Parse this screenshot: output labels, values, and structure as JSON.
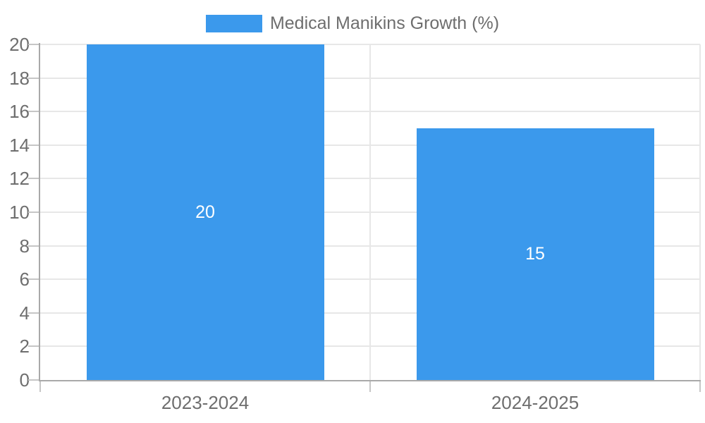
{
  "chart_data": {
    "type": "bar",
    "title": "Medical Manikins Growth (%)",
    "categories": [
      "2023-2024",
      "2024-2025"
    ],
    "values": [
      20,
      15
    ],
    "value_labels": [
      "20",
      "15"
    ],
    "xlabel": "",
    "ylabel": "",
    "ylim": [
      0,
      20
    ],
    "yticks": [
      0,
      2,
      4,
      6,
      8,
      10,
      12,
      14,
      16,
      18,
      20
    ],
    "grid": true,
    "legend_position": "top",
    "bar_width_fraction": 0.72,
    "value_labels_inside_bars": true
  },
  "legend": {
    "label": "Medical Manikins Growth (%)"
  },
  "colors": {
    "bar": "#3b99ec",
    "grid": "#e7e7e7",
    "axis": "#a9a9a9",
    "tick": "#c6c6c6",
    "text": "#6e6e6e",
    "value_text": "#ffffff",
    "background": "#ffffff"
  }
}
